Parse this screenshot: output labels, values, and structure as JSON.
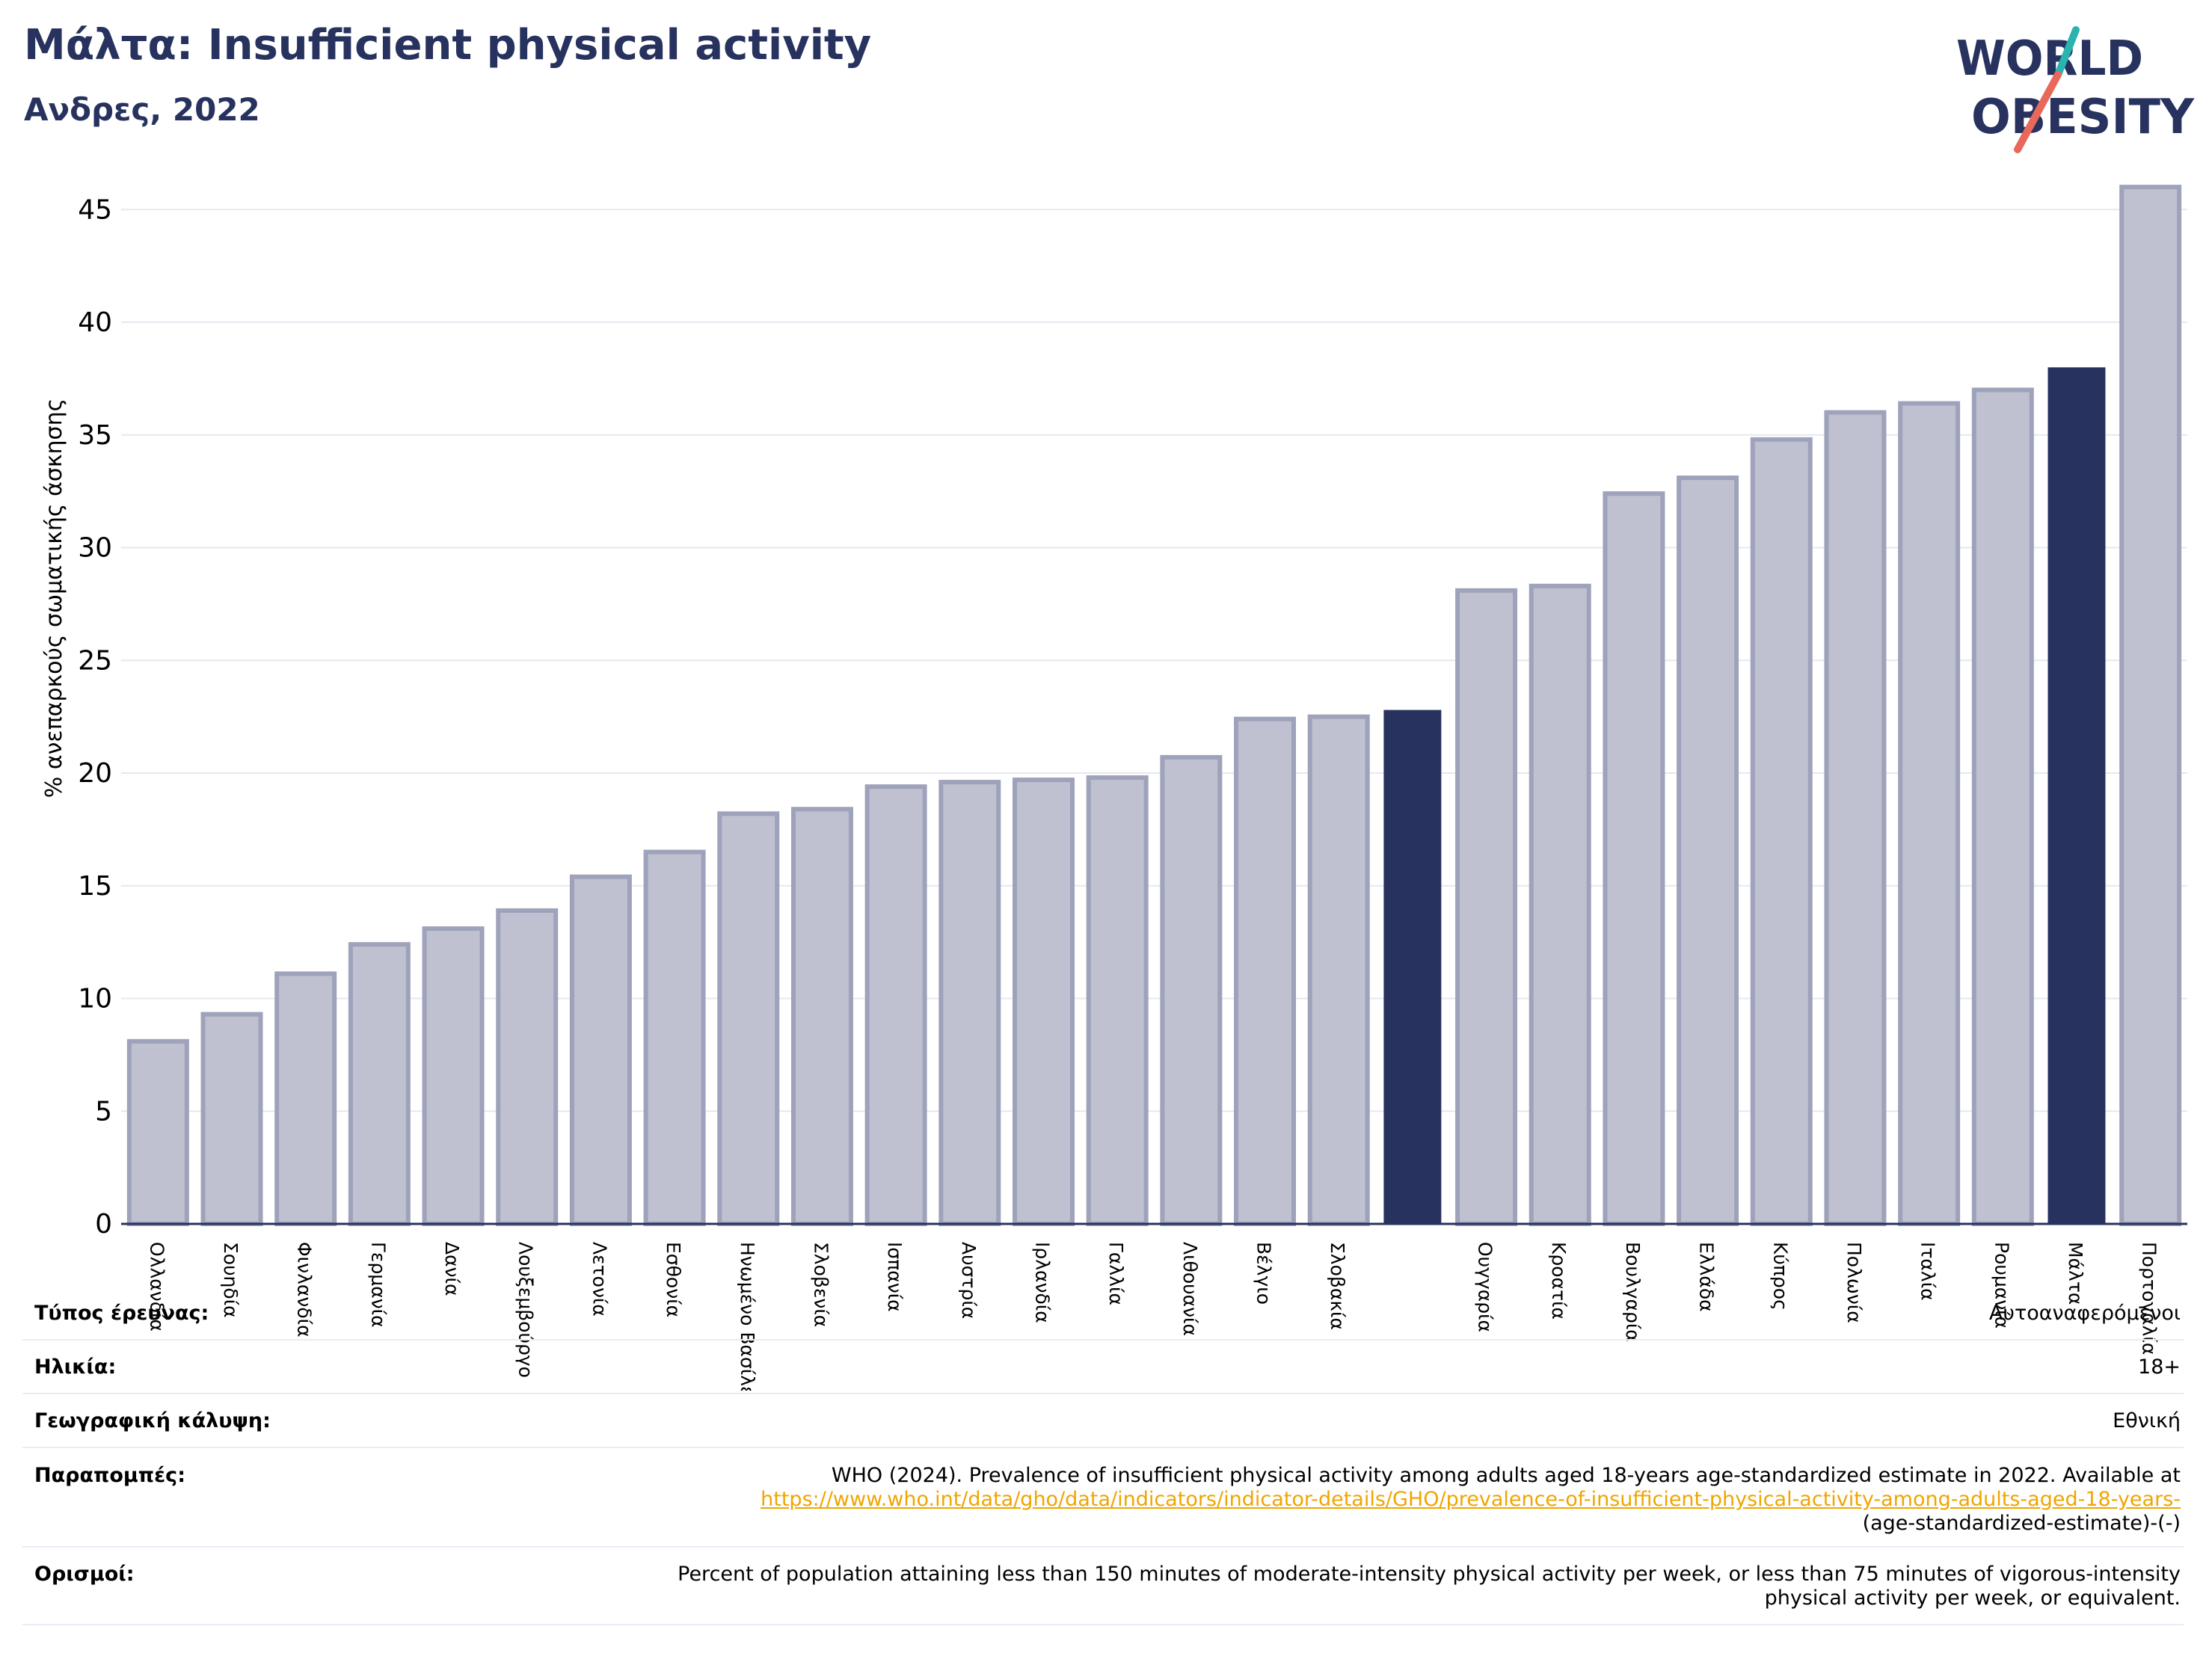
{
  "header": {
    "title": "Μάλτα: Insufficient physical activity",
    "subtitle": "Ανδρες, 2022"
  },
  "logo": {
    "line1": "WORLD",
    "line2": "OBESITY",
    "accent_teal": "#2bb3b1",
    "accent_red": "#e8685a"
  },
  "colors": {
    "bar": "#bfc1d0",
    "bar_border": "#9ea2ba",
    "highlight": "#28325f",
    "grid": "#e6e8f0",
    "text_dark": "#27325f"
  },
  "chart_data": {
    "type": "bar",
    "ylabel": "% ανεπαρκούς σωματικής άσκησης",
    "ylim": [
      0,
      47
    ],
    "yticks": [
      0,
      5,
      10,
      15,
      20,
      25,
      30,
      35,
      40,
      45
    ],
    "grid": true,
    "categories": [
      "Ολλανδία",
      "Σουηδία",
      "Φινλανδία",
      "Γερμανία",
      "Δανία",
      "Λουξεμβούργο",
      "Λετονία",
      "Εσθονία",
      "Ηνωμένο Βασίλειο",
      "Σλοβενία",
      "Ισπανία",
      "Αυστρία",
      "Ιρλανδία",
      "Γαλλία",
      "Λιθουανία",
      "Βέλγιο",
      "Σλοβακία",
      "",
      "Ουγγαρία",
      "Κροατία",
      "Βουλγαρία",
      "Ελλάδα",
      "Κύπρος",
      "Πολωνία",
      "Ιταλία",
      "Ρουμανία",
      "Μάλτα",
      "Πορτογαλία"
    ],
    "values": [
      8.1,
      9.3,
      11.1,
      12.4,
      13.1,
      13.9,
      15.4,
      16.5,
      18.2,
      18.4,
      19.4,
      19.6,
      19.7,
      19.8,
      20.7,
      22.4,
      22.5,
      22.8,
      28.1,
      28.3,
      32.4,
      33.1,
      34.8,
      36.0,
      36.4,
      37.0,
      38.0,
      46.0
    ],
    "highlighted": [
      17,
      26
    ]
  },
  "meta": {
    "survey_type": {
      "label": "Τύπος έρευνας:",
      "value": "Αυτοαναφερόμενοι"
    },
    "age": {
      "label": "Ηλικία:",
      "value": "18+"
    },
    "coverage": {
      "label": "Γεωγραφική κάλυψη:",
      "value": "Εθνική"
    },
    "references": {
      "label": "Παραπομπές:",
      "text": "WHO (2024). Prevalence of insufficient physical activity among adults aged 18-years age-standardized estimate in 2022. Available at",
      "link": "https://www.who.int/data/gho/data/indicators/indicator-details/GHO/prevalence-of-insufficient-physical-activity-among-adults-aged-18-years-",
      "tail": "(age-standardized-estimate)-(-)"
    },
    "definitions": {
      "label": "Ορισμοί:",
      "text": "Percent of population attaining less than 150 minutes of moderate-intensity physical activity per week, or less than 75 minutes of vigorous-intensity physical activity per week, or equivalent."
    }
  }
}
